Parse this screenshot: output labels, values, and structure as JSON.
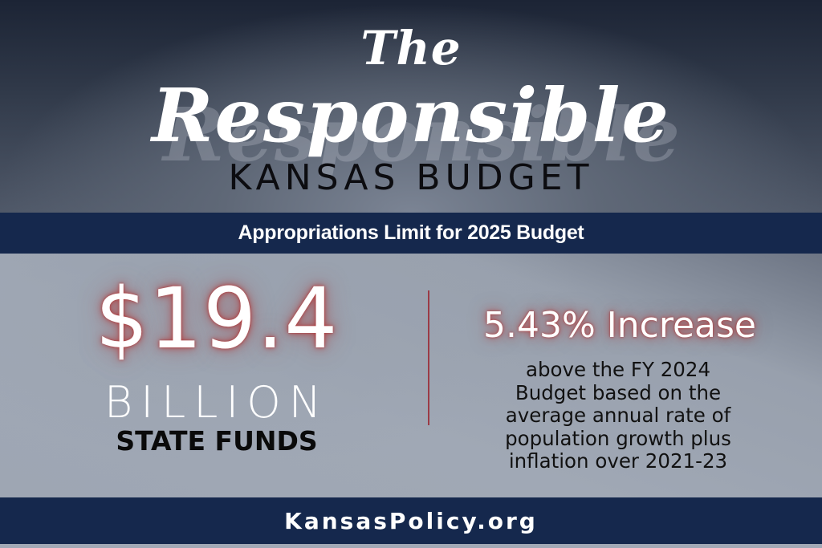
{
  "header": {
    "title_line1": "The",
    "title_line2": "Responsible",
    "title_line3": "KANSAS BUDGET"
  },
  "banner": {
    "label": "Appropriations Limit for 2025 Budget"
  },
  "stats": {
    "amount": {
      "value": "$19.4",
      "unit": "BILLION",
      "label": "STATE FUNDS"
    },
    "increase": {
      "value": "5.43% Increase",
      "description_lines": [
        "above the FY 2024",
        "Budget based on the",
        "average annual rate of",
        "population growth plus",
        "inflation over 2021-23"
      ]
    }
  },
  "footer": {
    "website": "KansasPolicy.org"
  },
  "colors": {
    "navy_band": "#15284d",
    "divider_red": "#9b3b46",
    "glow_red": "#b03a3a",
    "panel_gray": "#9ea6b3",
    "header_dark": "#1c2435"
  }
}
